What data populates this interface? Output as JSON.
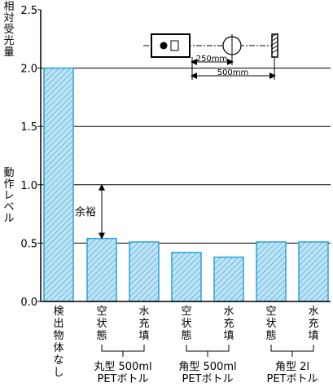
{
  "chart_data": {
    "type": "bar",
    "title": "",
    "ylabel": "相対受光量",
    "ylim": [
      0,
      2.5
    ],
    "yticks": [
      "0.0",
      "0.5",
      "1.0",
      "1.5",
      "2.0",
      "2.5"
    ],
    "grid": "horizontal",
    "categories": [
      "検出物体なし",
      "空状態",
      "水充填",
      "空状態",
      "水充填",
      "空状態",
      "水充填"
    ],
    "values": [
      2.0,
      0.54,
      0.51,
      0.42,
      0.38,
      0.51,
      0.51
    ],
    "groups": [
      {
        "label_line1": "丸型 500ml",
        "label_line2": "PETボトル"
      },
      {
        "label_line1": "角型 500ml",
        "label_line2": "PETボトル"
      },
      {
        "label_line1": "角型 2l",
        "label_line2": "PETボトル"
      }
    ],
    "threshold": {
      "label": "動作レベル",
      "value": 1.0
    },
    "margin_annotation": {
      "label": "余裕",
      "from": 0.54,
      "to": 1.0
    },
    "setup": {
      "dist_short": "250mm",
      "dist_long": "500mm"
    },
    "colors": {
      "bar_fill": "#bfe3f4",
      "bar_stroke": "#2aa4d8",
      "hatch": "#2aa4d8"
    }
  }
}
